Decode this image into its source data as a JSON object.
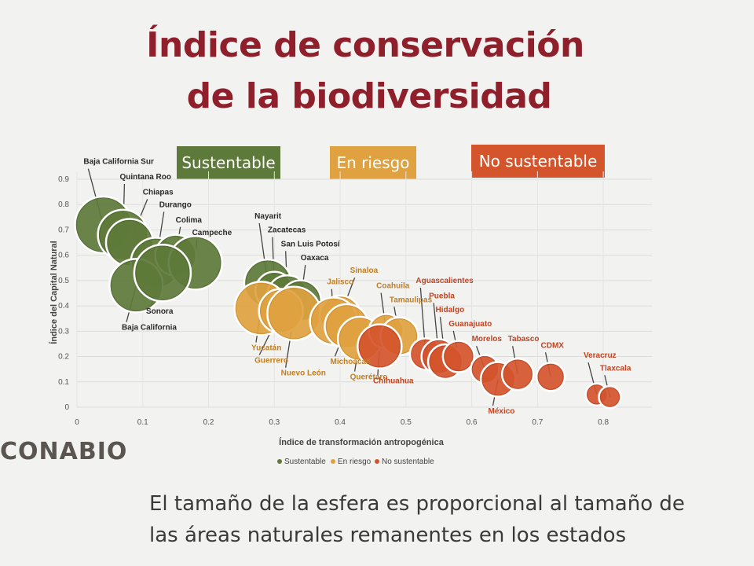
{
  "title_line1": "Índice de conservación",
  "title_line2": "de la biodiversidad",
  "categories": [
    {
      "key": "sustentable",
      "label": "Sustentable",
      "color": "#5e7a3a"
    },
    {
      "key": "riesgo",
      "label": "En riesgo",
      "color": "#e0a240"
    },
    {
      "key": "no",
      "label": "No sustentable",
      "color": "#d4552c"
    }
  ],
  "brand": "CONABIO",
  "caption_line1": "El tamaño de la esfera es proporcional al tamaño de",
  "caption_line2": "las áreas naturales remanentes en los estados",
  "chart_data": {
    "type": "scatter",
    "xlabel": "Índice de transformación antropogénica",
    "ylabel": "Índice del Capital Natural",
    "xlim": [
      0,
      0.85
    ],
    "ylim": [
      0,
      0.95
    ],
    "x_ticks": [
      "0",
      "0.1",
      "0.2",
      "0.3",
      "0.4",
      "0.5",
      "0.6",
      "0.7",
      "0.8"
    ],
    "y_ticks": [
      "0",
      "0.1",
      "0.2",
      "0.3",
      "0.4",
      "0.5",
      "0.6",
      "0.7",
      "0.8",
      "0.9"
    ],
    "grid": true,
    "legend": [
      "Sustentable",
      "En riesgo",
      "No sustentable"
    ],
    "legend_position": "bottom",
    "points": [
      {
        "name": "Baja California Sur",
        "x": 0.04,
        "y": 0.72,
        "r": 36,
        "cat": "sustentable",
        "lx": 0.01,
        "ly": 0.96
      },
      {
        "name": "Quintana Roo",
        "x": 0.07,
        "y": 0.68,
        "r": 32,
        "cat": "sustentable",
        "lx": 0.065,
        "ly": 0.9
      },
      {
        "name": "Chiapas",
        "x": 0.08,
        "y": 0.65,
        "r": 30,
        "cat": "sustentable",
        "lx": 0.1,
        "ly": 0.84
      },
      {
        "name": "Durango",
        "x": 0.12,
        "y": 0.57,
        "r": 32,
        "cat": "sustentable",
        "lx": 0.125,
        "ly": 0.79
      },
      {
        "name": "Colima",
        "x": 0.15,
        "y": 0.6,
        "r": 26,
        "cat": "sustentable",
        "lx": 0.15,
        "ly": 0.73
      },
      {
        "name": "Campeche",
        "x": 0.18,
        "y": 0.57,
        "r": 34,
        "cat": "sustentable",
        "lx": 0.175,
        "ly": 0.68
      },
      {
        "name": "Baja California",
        "x": 0.09,
        "y": 0.48,
        "r": 34,
        "cat": "sustentable",
        "lx": 0.068,
        "ly": 0.305
      },
      {
        "name": "Sonora",
        "x": 0.13,
        "y": 0.53,
        "r": 36,
        "cat": "sustentable",
        "lx": 0.105,
        "ly": 0.37
      },
      {
        "name": "Nayarit",
        "x": 0.29,
        "y": 0.49,
        "r": 30,
        "cat": "sustentable",
        "lx": 0.27,
        "ly": 0.745
      },
      {
        "name": "Zacatecas",
        "x": 0.3,
        "y": 0.46,
        "r": 24,
        "cat": "sustentable",
        "lx": 0.29,
        "ly": 0.69
      },
      {
        "name": "San Luis Potosí",
        "x": 0.32,
        "y": 0.44,
        "r": 26,
        "cat": "sustentable",
        "lx": 0.31,
        "ly": 0.635
      },
      {
        "name": "Oaxaca",
        "x": 0.34,
        "y": 0.42,
        "r": 26,
        "cat": "sustentable",
        "lx": 0.34,
        "ly": 0.58
      },
      {
        "name": "Yucatán",
        "x": 0.28,
        "y": 0.39,
        "r": 34,
        "cat": "riesgo",
        "lx": 0.265,
        "ly": 0.225
      },
      {
        "name": "Guerrero",
        "x": 0.31,
        "y": 0.38,
        "r": 28,
        "cat": "riesgo",
        "lx": 0.27,
        "ly": 0.175
      },
      {
        "name": "Nuevo León",
        "x": 0.33,
        "y": 0.37,
        "r": 34,
        "cat": "riesgo",
        "lx": 0.31,
        "ly": 0.125
      },
      {
        "name": "Sinaloa",
        "x": 0.4,
        "y": 0.36,
        "r": 26,
        "cat": "riesgo",
        "lx": 0.415,
        "ly": 0.53
      },
      {
        "name": "Jalisco",
        "x": 0.39,
        "y": 0.34,
        "r": 30,
        "cat": "riesgo",
        "lx": 0.38,
        "ly": 0.485
      },
      {
        "name": "Michoacán",
        "x": 0.41,
        "y": 0.32,
        "r": 28,
        "cat": "riesgo",
        "lx": 0.385,
        "ly": 0.17
      },
      {
        "name": "Querétaro",
        "x": 0.43,
        "y": 0.27,
        "r": 28,
        "cat": "riesgo",
        "lx": 0.415,
        "ly": 0.11
      },
      {
        "name": "Coahuila",
        "x": 0.47,
        "y": 0.3,
        "r": 22,
        "cat": "riesgo",
        "lx": 0.455,
        "ly": 0.47
      },
      {
        "name": "Tamaulipas",
        "x": 0.49,
        "y": 0.28,
        "r": 24,
        "cat": "riesgo",
        "lx": 0.475,
        "ly": 0.415
      },
      {
        "name": "Chihuahua",
        "x": 0.46,
        "y": 0.24,
        "r": 28,
        "cat": "no",
        "lx": 0.45,
        "ly": 0.095
      },
      {
        "name": "Aguascalientes",
        "x": 0.53,
        "y": 0.21,
        "r": 20,
        "cat": "no",
        "lx": 0.515,
        "ly": 0.49
      },
      {
        "name": "Puebla",
        "x": 0.55,
        "y": 0.2,
        "r": 22,
        "cat": "no",
        "lx": 0.535,
        "ly": 0.43
      },
      {
        "name": "Hidalgo",
        "x": 0.56,
        "y": 0.18,
        "r": 22,
        "cat": "no",
        "lx": 0.545,
        "ly": 0.375
      },
      {
        "name": "Guanajuato",
        "x": 0.58,
        "y": 0.2,
        "r": 20,
        "cat": "no",
        "lx": 0.565,
        "ly": 0.32
      },
      {
        "name": "Morelos",
        "x": 0.62,
        "y": 0.15,
        "r": 18,
        "cat": "no",
        "lx": 0.6,
        "ly": 0.26
      },
      {
        "name": "México",
        "x": 0.64,
        "y": 0.11,
        "r": 22,
        "cat": "no",
        "lx": 0.625,
        "ly": -0.025
      },
      {
        "name": "Tabasco",
        "x": 0.67,
        "y": 0.13,
        "r": 20,
        "cat": "no",
        "lx": 0.655,
        "ly": 0.26
      },
      {
        "name": "CDMX",
        "x": 0.72,
        "y": 0.12,
        "r": 18,
        "cat": "no",
        "lx": 0.705,
        "ly": 0.235
      },
      {
        "name": "Veracruz",
        "x": 0.79,
        "y": 0.05,
        "r": 14,
        "cat": "no",
        "lx": 0.77,
        "ly": 0.195
      },
      {
        "name": "Tlaxcala",
        "x": 0.81,
        "y": 0.04,
        "r": 14,
        "cat": "no",
        "lx": 0.795,
        "ly": 0.145
      }
    ]
  }
}
